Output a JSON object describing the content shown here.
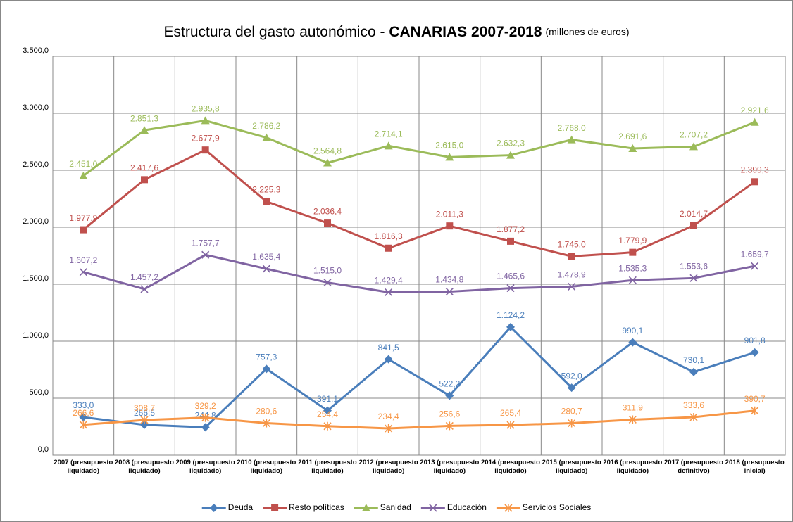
{
  "chart_data": {
    "type": "line",
    "title": {
      "text": "Estructura del gasto autonómico - ",
      "bold": "CANARIAS 2007-2018",
      "note": "(millones de euros)"
    },
    "categories": [
      "2007 (presupuesto liquidado)",
      "2008 (presupuesto liquidado)",
      "2009 (presupuesto liquidado)",
      "2010 (presupuesto liquidado)",
      "2011 (presupuesto liquidado)",
      "2012 (presupuesto liquidado)",
      "2013 (presupuesto liquidado)",
      "2014 (presupuesto liquidado)",
      "2015 (presupuesto liquidado)",
      "2016 (presupuesto liquidado)",
      "2017 (presupuesto definitivo)",
      "2018 (presupuesto inicial)"
    ],
    "ylim": [
      0,
      3500
    ],
    "yticks": [
      {
        "value": 0,
        "label": "0,0"
      },
      {
        "value": 500,
        "label": "500,0"
      },
      {
        "value": 1000,
        "label": "1.000,0"
      },
      {
        "value": 1500,
        "label": "1.500,0"
      },
      {
        "value": 2000,
        "label": "2.000,0"
      },
      {
        "value": 2500,
        "label": "2.500,0"
      },
      {
        "value": 3000,
        "label": "3.000,0"
      },
      {
        "value": 3500,
        "label": "3.500,0"
      }
    ],
    "grid": true,
    "legend": "bottom",
    "series": [
      {
        "name": "Deuda",
        "color": "#4a7ebb",
        "marker": "diamond",
        "values": [
          333.0,
          266.5,
          244.8,
          757.3,
          391.1,
          841.5,
          522.2,
          1124.2,
          592.0,
          990.1,
          730.1,
          901.8
        ],
        "value_labels": [
          "333,0",
          "266,5",
          "244,8",
          "757,3",
          "391,1",
          "841,5",
          "522,2",
          "1.124,2",
          "592,0",
          "990,1",
          "730,1",
          "901,8"
        ]
      },
      {
        "name": "Resto políticas",
        "color": "#c0504d",
        "marker": "square",
        "values": [
          1977.9,
          2417.6,
          2677.9,
          2225.3,
          2036.4,
          1816.3,
          2011.3,
          1877.2,
          1745.0,
          1779.9,
          2014.7,
          2399.3
        ],
        "value_labels": [
          "1.977,9",
          "2.417,6",
          "2.677,9",
          "2.225,3",
          "2.036,4",
          "1.816,3",
          "2.011,3",
          "1.877,2",
          "1.745,0",
          "1.779,9",
          "2.014,7",
          "2.399,3"
        ]
      },
      {
        "name": "Sanidad",
        "color": "#9bbb59",
        "marker": "triangle",
        "values": [
          2451.0,
          2851.3,
          2935.8,
          2786.2,
          2564.8,
          2714.1,
          2615.0,
          2632.3,
          2768.0,
          2691.6,
          2707.2,
          2921.6
        ],
        "value_labels": [
          "2.451,0",
          "2.851,3",
          "2.935,8",
          "2.786,2",
          "2.564,8",
          "2.714,1",
          "2.615,0",
          "2.632,3",
          "2.768,0",
          "2.691,6",
          "2.707,2",
          "2.921,6"
        ]
      },
      {
        "name": "Educación",
        "color": "#8064a2",
        "marker": "x",
        "values": [
          1607.2,
          1457.2,
          1757.7,
          1635.4,
          1515.0,
          1429.4,
          1434.8,
          1465.6,
          1478.9,
          1535.3,
          1553.6,
          1659.7
        ],
        "value_labels": [
          "1.607,2",
          "1.457,2",
          "1.757,7",
          "1.635,4",
          "1.515,0",
          "1.429,4",
          "1.434,8",
          "1.465,6",
          "1.478,9",
          "1.535,3",
          "1.553,6",
          "1.659,7"
        ]
      },
      {
        "name": "Servicios Sociales",
        "color": "#f79646",
        "marker": "star",
        "values": [
          266.6,
          308.7,
          329.2,
          280.6,
          254.4,
          234.4,
          256.6,
          265.4,
          280.7,
          311.9,
          333.6,
          390.7
        ],
        "value_labels": [
          "266,6",
          "308,7",
          "329,2",
          "280,6",
          "254,4",
          "234,4",
          "256,6",
          "265,4",
          "280,7",
          "311,9",
          "333,6",
          "390,7"
        ]
      }
    ]
  }
}
